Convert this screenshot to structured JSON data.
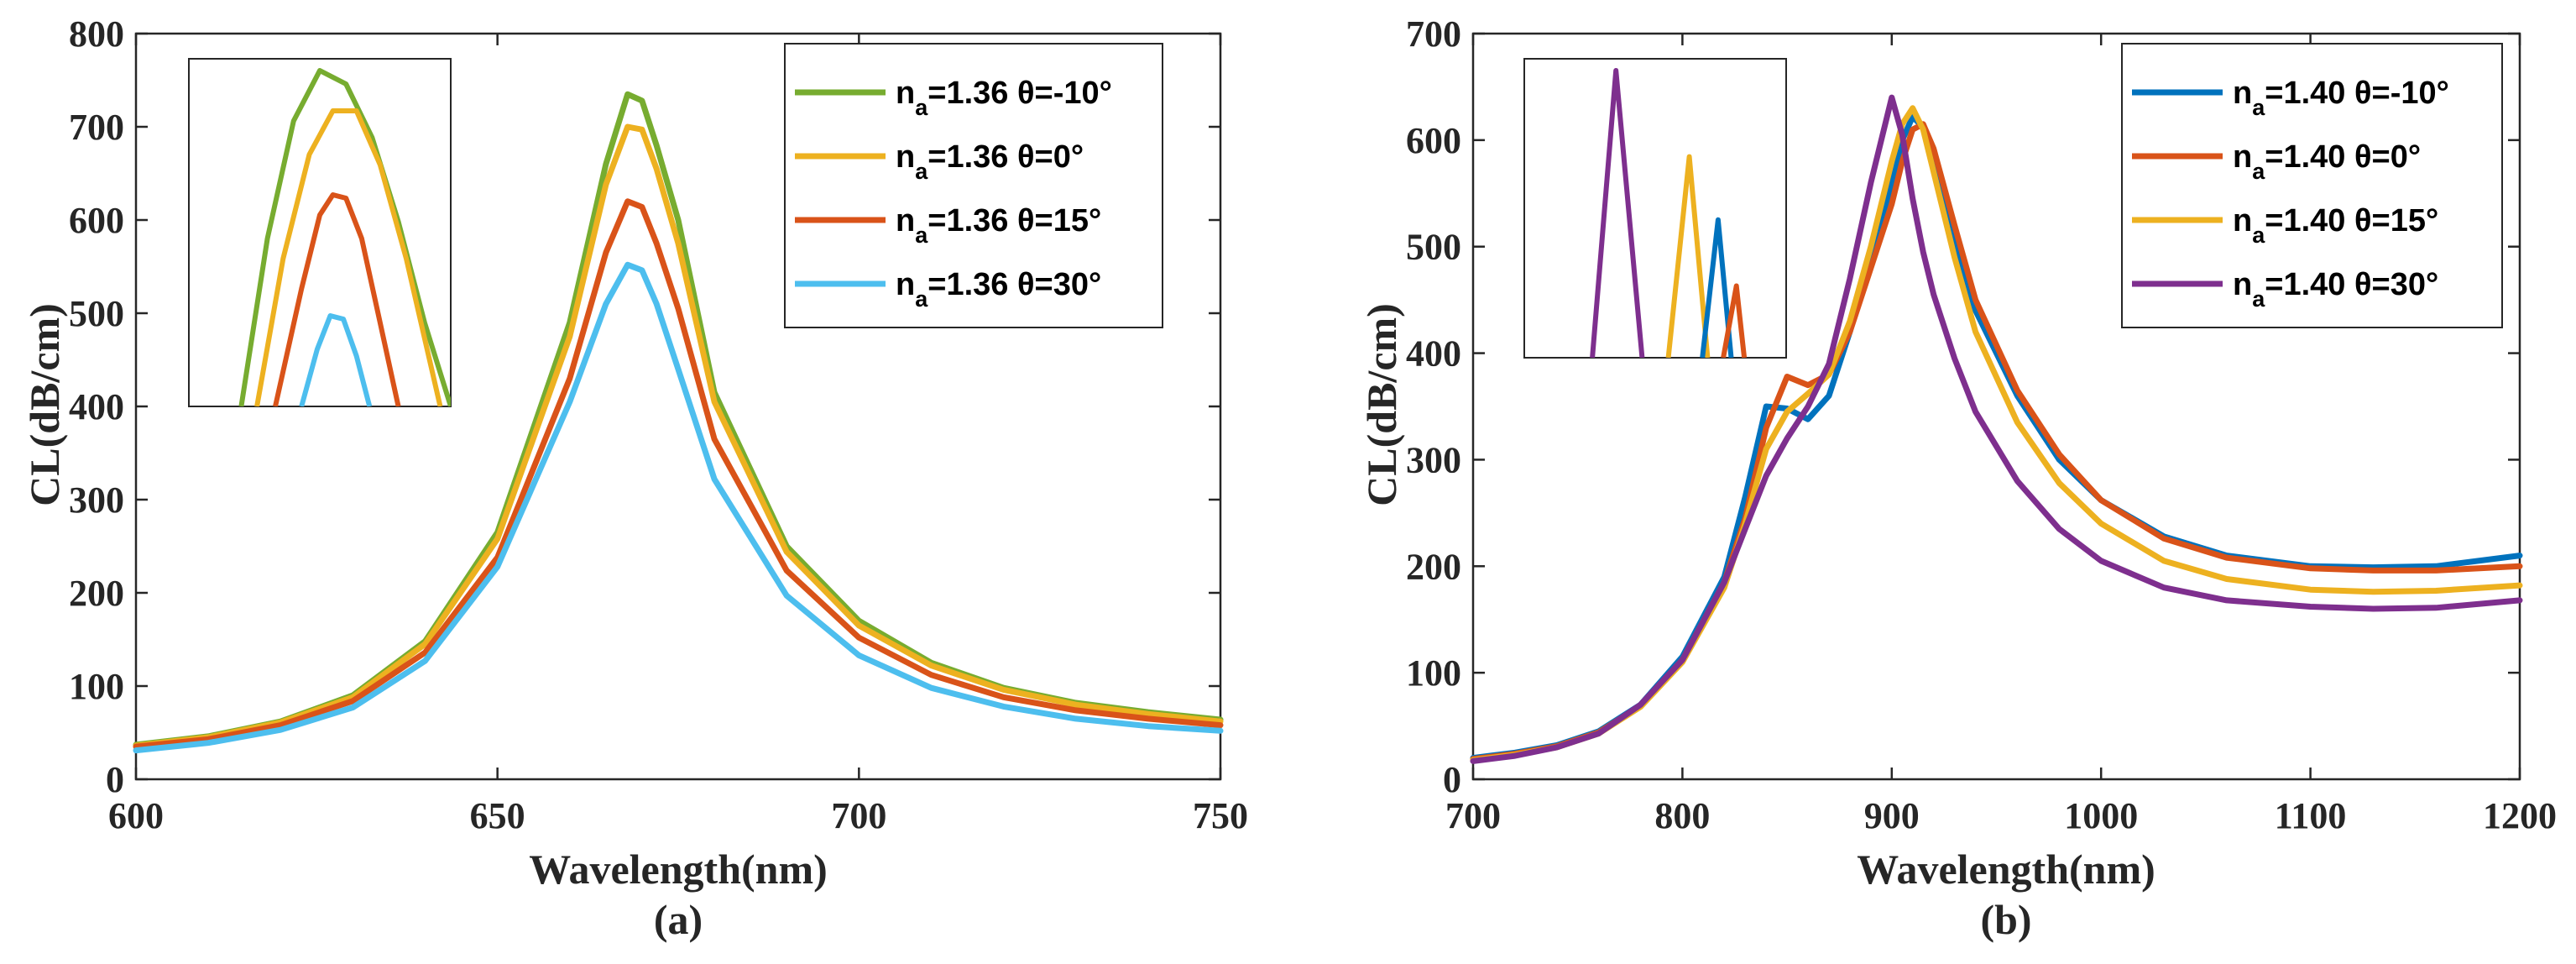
{
  "chart_data": [
    {
      "type": "line",
      "panel_label": "(a)",
      "xlabel": "Wavelength(nm)",
      "ylabel": "CL(dB/cm)",
      "xlim": [
        600,
        750
      ],
      "ylim": [
        0,
        800
      ],
      "xticks": [
        "600",
        "650",
        "700",
        "750"
      ],
      "yticks": [
        "0",
        "100",
        "200",
        "300",
        "400",
        "500",
        "600",
        "700",
        "800"
      ],
      "legend_position": "top-right",
      "series": [
        {
          "name_prefix": "n",
          "name_sub": "a",
          "name_suffix": "=1.36 θ=-10°",
          "color": "#77AC30",
          "x": [
            600,
            610,
            620,
            630,
            640,
            650,
            660,
            665,
            668,
            670,
            672,
            675,
            680,
            690,
            700,
            710,
            720,
            730,
            740,
            750
          ],
          "y": [
            37,
            46,
            62,
            90,
            148,
            265,
            490,
            660,
            735,
            728,
            680,
            600,
            415,
            250,
            170,
            125,
            98,
            82,
            72,
            64
          ]
        },
        {
          "name_prefix": "n",
          "name_sub": "a",
          "name_suffix": "=1.36 θ=0°",
          "color": "#EDB120",
          "x": [
            600,
            610,
            620,
            630,
            640,
            650,
            660,
            665,
            668,
            670,
            672,
            675,
            680,
            690,
            700,
            710,
            720,
            730,
            740,
            750
          ],
          "y": [
            36,
            45,
            61,
            88,
            145,
            258,
            475,
            638,
            700,
            697,
            655,
            575,
            405,
            244,
            165,
            122,
            96,
            80,
            70,
            62
          ]
        },
        {
          "name_prefix": "n",
          "name_sub": "a",
          "name_suffix": "=1.36 θ=15°",
          "color": "#D95319",
          "x": [
            600,
            610,
            620,
            630,
            640,
            650,
            660,
            665,
            668,
            670,
            672,
            675,
            680,
            690,
            700,
            710,
            720,
            730,
            740,
            750
          ],
          "y": [
            35,
            43,
            58,
            84,
            136,
            238,
            430,
            565,
            620,
            614,
            575,
            505,
            365,
            224,
            152,
            112,
            88,
            74,
            65,
            58
          ]
        },
        {
          "name_prefix": "n",
          "name_sub": "a",
          "name_suffix": "=1.36 θ=30°",
          "color": "#4DBEEE",
          "x": [
            600,
            610,
            620,
            630,
            640,
            650,
            660,
            665,
            668,
            670,
            672,
            675,
            680,
            690,
            700,
            710,
            720,
            730,
            740,
            750
          ],
          "y": [
            31,
            39,
            53,
            77,
            127,
            228,
            405,
            510,
            552,
            546,
            510,
            440,
            322,
            197,
            133,
            98,
            78,
            65,
            57,
            52
          ]
        }
      ],
      "inset": {
        "xlim": [
          0,
          10
        ],
        "ylim": [
          0,
          10
        ],
        "series": [
          {
            "color": "#77AC30",
            "x": [
              2,
              3,
              4,
              5,
              6,
              7,
              8,
              9,
              10
            ],
            "y": [
              0,
              5,
              8.5,
              10,
              9.6,
              8,
              5.5,
              2.5,
              0
            ]
          },
          {
            "color": "#EDB120",
            "x": [
              2.6,
              3.6,
              4.6,
              5.5,
              6.4,
              7.3,
              8.3,
              9.6
            ],
            "y": [
              0,
              4.4,
              7.5,
              8.8,
              8.8,
              7.2,
              4.4,
              0
            ]
          },
          {
            "color": "#D95319",
            "x": [
              3.3,
              4.3,
              5,
              5.5,
              6,
              6.6,
              7.3,
              8
            ],
            "y": [
              0,
              3.5,
              5.7,
              6.3,
              6.2,
              5,
              2.5,
              0
            ]
          },
          {
            "color": "#4DBEEE",
            "x": [
              4.3,
              4.9,
              5.4,
              5.9,
              6.4,
              6.9
            ],
            "y": [
              0,
              1.7,
              2.7,
              2.6,
              1.5,
              0
            ]
          }
        ]
      }
    },
    {
      "type": "line",
      "panel_label": "(b)",
      "xlabel": "Wavelength(nm)",
      "ylabel": "CL(dB/cm)",
      "xlim": [
        700,
        1200
      ],
      "ylim": [
        0,
        700
      ],
      "xticks": [
        "700",
        "800",
        "900",
        "1000",
        "1100",
        "1200"
      ],
      "yticks": [
        "0",
        "100",
        "200",
        "300",
        "400",
        "500",
        "600",
        "700"
      ],
      "legend_position": "top-right",
      "series": [
        {
          "name_prefix": "n",
          "name_sub": "a",
          "name_suffix": "=1.40 θ=-10°",
          "color": "#0072BD",
          "x": [
            700,
            720,
            740,
            760,
            780,
            800,
            820,
            830,
            840,
            850,
            860,
            870,
            880,
            890,
            900,
            905,
            910,
            915,
            920,
            930,
            940,
            960,
            980,
            1000,
            1030,
            1060,
            1100,
            1130,
            1160,
            1200
          ],
          "y": [
            20,
            25,
            32,
            45,
            70,
            115,
            190,
            265,
            350,
            348,
            338,
            360,
            420,
            490,
            560,
            600,
            622,
            612,
            580,
            505,
            440,
            360,
            300,
            262,
            228,
            210,
            200,
            199,
            200,
            210
          ]
        },
        {
          "name_prefix": "n",
          "name_sub": "a",
          "name_suffix": "=1.40 θ=0°",
          "color": "#D95319",
          "x": [
            700,
            720,
            740,
            760,
            780,
            800,
            820,
            830,
            840,
            850,
            860,
            870,
            880,
            890,
            900,
            905,
            910,
            915,
            920,
            930,
            940,
            960,
            980,
            1000,
            1030,
            1060,
            1100,
            1130,
            1160,
            1200
          ],
          "y": [
            19,
            24,
            31,
            44,
            69,
            112,
            185,
            245,
            330,
            378,
            370,
            380,
            420,
            480,
            540,
            580,
            610,
            615,
            592,
            520,
            450,
            365,
            305,
            262,
            226,
            208,
            198,
            196,
            196,
            200
          ]
        },
        {
          "name_prefix": "n",
          "name_sub": "a",
          "name_suffix": "=1.40 θ=15°",
          "color": "#EDB120",
          "x": [
            700,
            720,
            740,
            760,
            780,
            800,
            820,
            830,
            840,
            850,
            860,
            870,
            880,
            890,
            900,
            905,
            910,
            915,
            920,
            930,
            940,
            960,
            980,
            1000,
            1030,
            1060,
            1100,
            1130,
            1160,
            1200
          ],
          "y": [
            18,
            23,
            30,
            43,
            68,
            110,
            180,
            240,
            310,
            345,
            362,
            380,
            430,
            500,
            580,
            615,
            630,
            610,
            570,
            490,
            420,
            335,
            278,
            240,
            205,
            188,
            178,
            176,
            177,
            182
          ]
        },
        {
          "name_prefix": "n",
          "name_sub": "a",
          "name_suffix": "=1.40 θ=30°",
          "color": "#7E2F8E",
          "x": [
            700,
            720,
            740,
            760,
            780,
            800,
            820,
            830,
            840,
            850,
            860,
            870,
            880,
            890,
            900,
            905,
            910,
            915,
            920,
            930,
            940,
            960,
            980,
            1000,
            1030,
            1060,
            1100,
            1130,
            1160,
            1200
          ],
          "y": [
            17,
            22,
            30,
            43,
            70,
            112,
            185,
            235,
            285,
            320,
            350,
            390,
            470,
            560,
            640,
            605,
            545,
            495,
            455,
            395,
            345,
            280,
            235,
            205,
            180,
            168,
            162,
            160,
            161,
            168
          ]
        }
      ],
      "inset": {
        "xlim": [
          0,
          10
        ],
        "ylim": [
          0,
          10
        ],
        "series": [
          {
            "color": "#7E2F8E",
            "x": [
              2.6,
              3.5,
              4.5
            ],
            "y": [
              0,
              10,
              0
            ]
          },
          {
            "color": "#EDB120",
            "x": [
              5.5,
              6.3,
              7.0
            ],
            "y": [
              0,
              7,
              0
            ]
          },
          {
            "color": "#0072BD",
            "x": [
              6.8,
              7.4,
              7.9
            ],
            "y": [
              0,
              4.8,
              0
            ]
          },
          {
            "color": "#D95319",
            "x": [
              7.6,
              8.1,
              8.4
            ],
            "y": [
              0,
              2.5,
              0
            ]
          }
        ]
      }
    }
  ]
}
